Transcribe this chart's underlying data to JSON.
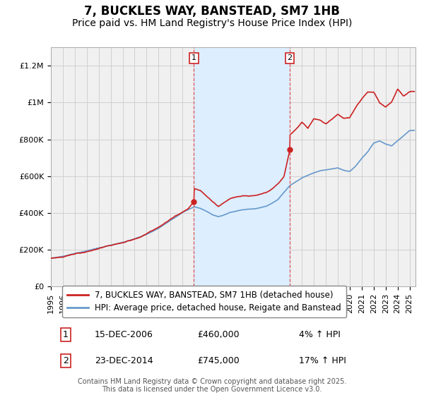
{
  "title": "7, BUCKLES WAY, BANSTEAD, SM7 1HB",
  "subtitle": "Price paid vs. HM Land Registry's House Price Index (HPI)",
  "ylim": [
    0,
    1300000
  ],
  "xlim_start": 1995.0,
  "xlim_end": 2025.5,
  "yticks": [
    0,
    200000,
    400000,
    600000,
    800000,
    1000000,
    1200000
  ],
  "ytick_labels": [
    "£0",
    "£200K",
    "£400K",
    "£600K",
    "£800K",
    "£1M",
    "£1.2M"
  ],
  "xtick_years": [
    1995,
    1996,
    1997,
    1998,
    1999,
    2000,
    2001,
    2002,
    2003,
    2004,
    2005,
    2006,
    2007,
    2008,
    2009,
    2010,
    2011,
    2012,
    2013,
    2014,
    2015,
    2016,
    2017,
    2018,
    2019,
    2020,
    2021,
    2022,
    2023,
    2024,
    2025
  ],
  "hpi_color": "#6699cc",
  "price_color": "#cc2222",
  "marker_color": "#cc2222",
  "shade_color": "#ddeeff",
  "vline_color": "#dd4444",
  "annotation_box_color": "#cc2222",
  "background_color": "#f0f0f0",
  "grid_color": "#cccccc",
  "legend_label_price": "7, BUCKLES WAY, BANSTEAD, SM7 1HB (detached house)",
  "legend_label_hpi": "HPI: Average price, detached house, Reigate and Banstead",
  "event1_x": 2006.96,
  "event1_label": "1",
  "event1_date": "15-DEC-2006",
  "event1_price": "£460,000",
  "event1_pct": "4% ↑ HPI",
  "event1_y": 460000,
  "event2_x": 2014.98,
  "event2_label": "2",
  "event2_date": "23-DEC-2014",
  "event2_price": "£745,000",
  "event2_pct": "17% ↑ HPI",
  "event2_y": 745000,
  "footer": "Contains HM Land Registry data © Crown copyright and database right 2025.\nThis data is licensed under the Open Government Licence v3.0.",
  "title_fontsize": 12,
  "subtitle_fontsize": 10,
  "tick_fontsize": 8,
  "legend_fontsize": 8.5,
  "table_fontsize": 9,
  "footer_fontsize": 7
}
